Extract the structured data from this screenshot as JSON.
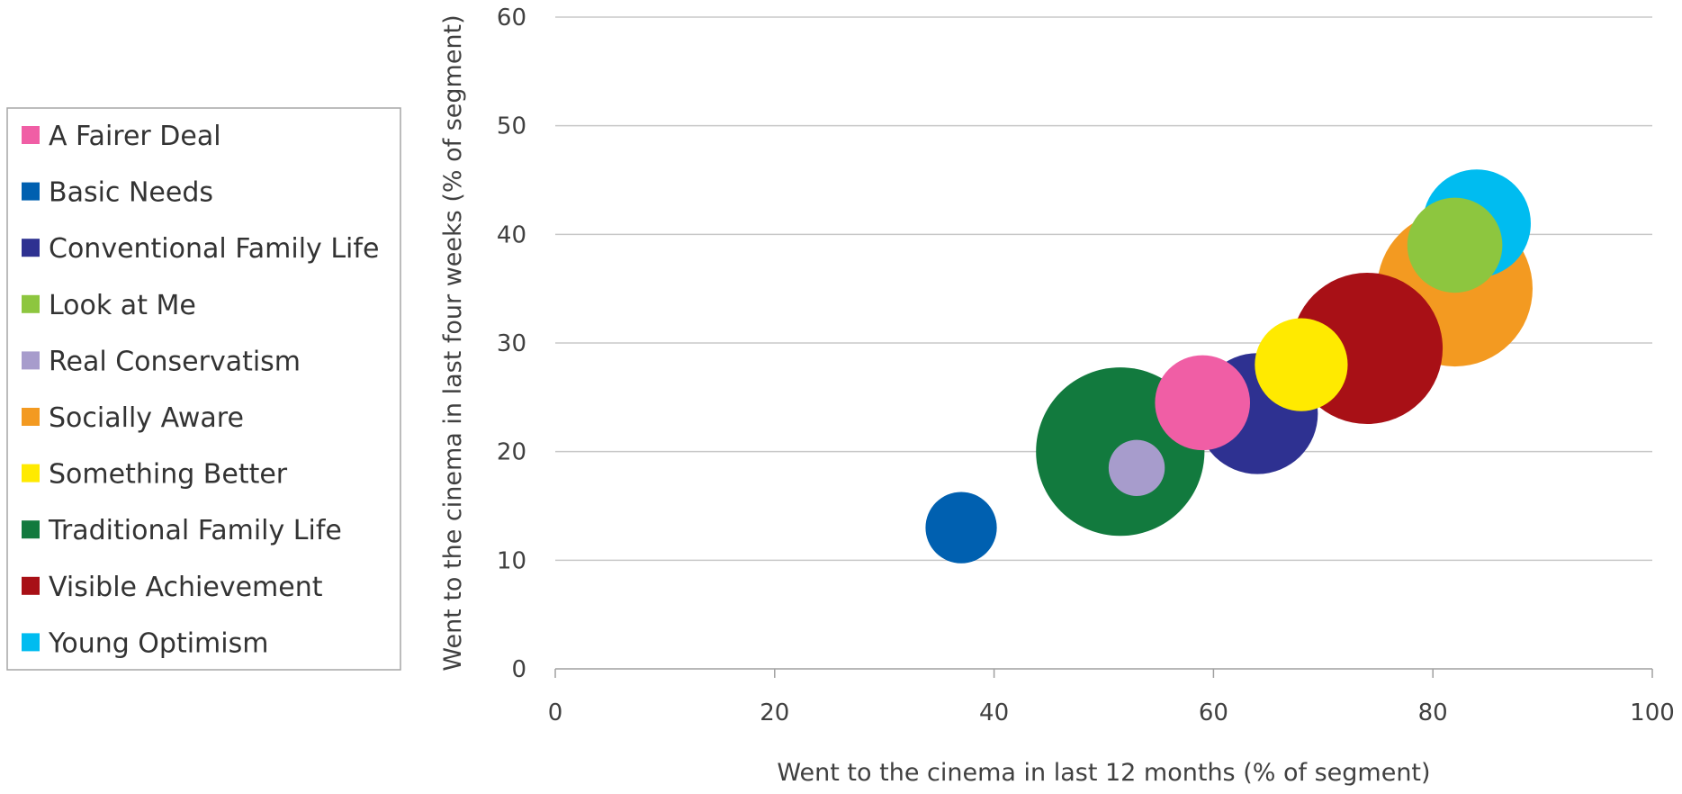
{
  "chart_data": {
    "type": "bubble",
    "title": "",
    "xlabel": "Went to the cinema in last 12 months (% of segment)",
    "ylabel": "Went to the cinema in last four weeks (% of segment)",
    "xlim": [
      0,
      100
    ],
    "ylim": [
      0,
      60
    ],
    "x_ticks": [
      "0",
      "20",
      "40",
      "60",
      "80",
      "100"
    ],
    "y_ticks": [
      "0",
      "10",
      "20",
      "30",
      "40",
      "50",
      "60"
    ],
    "grid": "horizontal",
    "legend": "left",
    "series": [
      {
        "name": "A Fairer Deal",
        "color": "#f05ea5",
        "x": 59,
        "y": 24.5,
        "size": 4.4
      },
      {
        "name": "Basic Needs",
        "color": "#0060b0",
        "x": 37,
        "y": 13,
        "size": 3.3
      },
      {
        "name": "Conventional Family Life",
        "color": "#2e3191",
        "x": 64,
        "y": 23.5,
        "size": 5.6
      },
      {
        "name": "Look at Me",
        "color": "#8dc63f",
        "x": 82,
        "y": 39,
        "size": 4.4
      },
      {
        "name": "Real Conservatism",
        "color": "#a79ccc",
        "x": 53,
        "y": 18.5,
        "size": 2.6
      },
      {
        "name": "Socially Aware",
        "color": "#f39a21",
        "x": 82,
        "y": 35,
        "size": 7.2
      },
      {
        "name": "Something Better",
        "color": "#ffea00",
        "x": 68,
        "y": 28,
        "size": 4.3
      },
      {
        "name": "Traditional Family Life",
        "color": "#127a3e",
        "x": 51.5,
        "y": 20,
        "size": 7.8
      },
      {
        "name": "Visible Achievement",
        "color": "#a81016",
        "x": 74,
        "y": 29.5,
        "size": 7.0
      },
      {
        "name": "Young Optimism",
        "color": "#00bcf0",
        "x": 84,
        "y": 41,
        "size": 5.0
      }
    ]
  }
}
